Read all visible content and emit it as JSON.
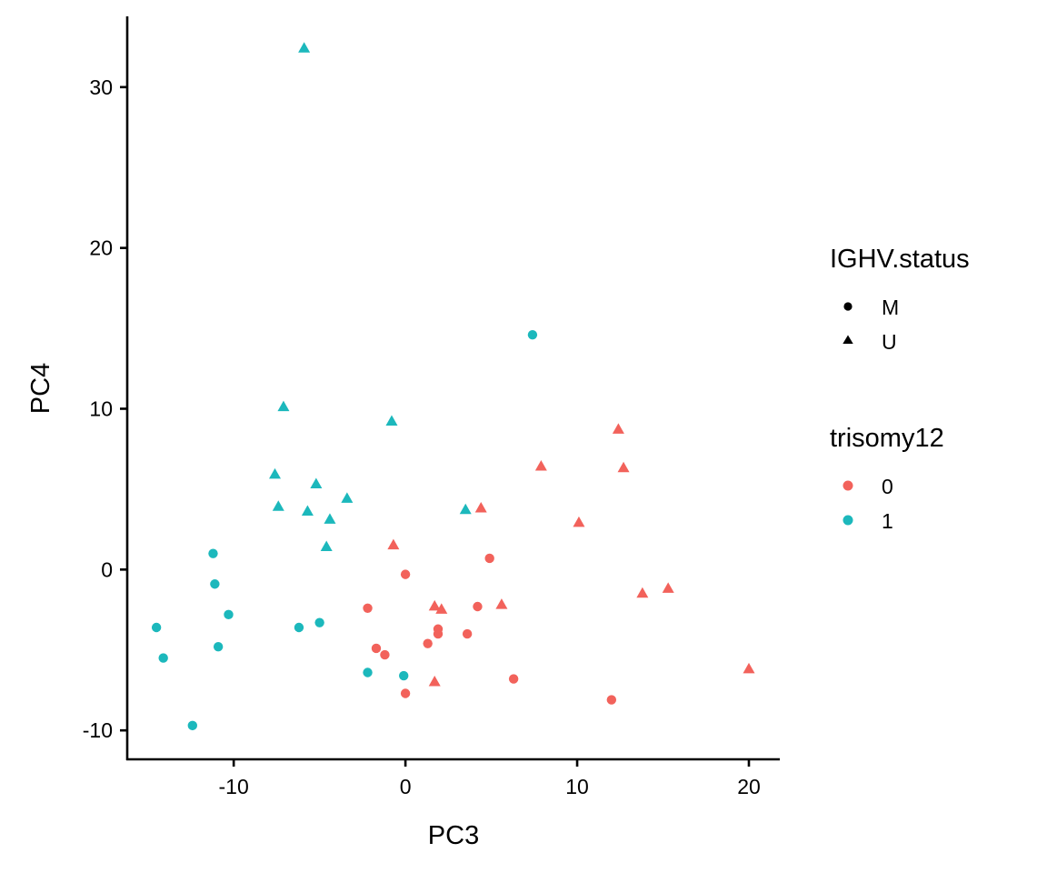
{
  "chart_data": {
    "type": "scatter",
    "title": "",
    "xlabel": "PC3",
    "ylabel": "PC4",
    "xlim": [
      -16.2,
      21.8
    ],
    "ylim": [
      -11.8,
      34.4
    ],
    "xticks": [
      -10,
      0,
      10,
      20
    ],
    "yticks": [
      -10,
      0,
      10,
      20,
      30
    ],
    "xtick_labels": [
      "-10",
      "0",
      "10",
      "20"
    ],
    "ytick_labels": [
      "-10",
      "0",
      "10",
      "20",
      "30"
    ],
    "grid": false,
    "legend_position": "right",
    "legends": [
      {
        "title": "IGHV.status",
        "kind": "shape",
        "entries": [
          {
            "label": "M",
            "shape": "circle"
          },
          {
            "label": "U",
            "shape": "triangle"
          }
        ]
      },
      {
        "title": "trisomy12",
        "kind": "color",
        "entries": [
          {
            "label": "0",
            "color": "#F8766D"
          },
          {
            "label": "1",
            "color": "#00BFC4"
          }
        ]
      }
    ],
    "series": [
      {
        "name": "trisomy12=1, IGHV=U",
        "trisomy12": "1",
        "IGHV.status": "U",
        "color": "#1CB8BC",
        "shape": "triangle",
        "points": [
          [
            -5.9,
            32.4
          ],
          [
            -7.1,
            10.1
          ],
          [
            -0.8,
            9.2
          ],
          [
            -7.6,
            5.9
          ],
          [
            -5.2,
            5.3
          ],
          [
            -7.4,
            3.9
          ],
          [
            -5.7,
            3.6
          ],
          [
            -3.4,
            4.4
          ],
          [
            -4.4,
            3.1
          ],
          [
            -4.6,
            1.4
          ],
          [
            3.5,
            3.7
          ]
        ]
      },
      {
        "name": "trisomy12=0, IGHV=U",
        "trisomy12": "0",
        "IGHV.status": "U",
        "color": "#F2625B",
        "shape": "triangle",
        "points": [
          [
            4.4,
            3.8
          ],
          [
            -0.7,
            1.5
          ],
          [
            12.4,
            8.7
          ],
          [
            7.9,
            6.4
          ],
          [
            12.7,
            6.3
          ],
          [
            10.1,
            2.9
          ],
          [
            1.7,
            -2.3
          ],
          [
            2.1,
            -2.5
          ],
          [
            5.6,
            -2.2
          ],
          [
            13.8,
            -1.5
          ],
          [
            15.3,
            -1.2
          ],
          [
            1.7,
            -7.0
          ],
          [
            20.0,
            -6.2
          ]
        ]
      },
      {
        "name": "trisomy12=0, IGHV=M",
        "trisomy12": "0",
        "IGHV.status": "M",
        "color": "#F2625B",
        "shape": "circle",
        "points": [
          [
            0.0,
            -0.3
          ],
          [
            4.9,
            0.7
          ],
          [
            -2.2,
            -2.4
          ],
          [
            4.2,
            -2.3
          ],
          [
            1.9,
            -3.7
          ],
          [
            1.9,
            -4.0
          ],
          [
            3.6,
            -4.0
          ],
          [
            1.3,
            -4.6
          ],
          [
            -1.7,
            -4.9
          ],
          [
            -1.2,
            -5.3
          ],
          [
            6.3,
            -6.8
          ],
          [
            0.0,
            -7.7
          ],
          [
            12.0,
            -8.1
          ]
        ]
      },
      {
        "name": "trisomy12=1, IGHV=M",
        "trisomy12": "1",
        "IGHV.status": "M",
        "color": "#1CB8BC",
        "shape": "circle",
        "points": [
          [
            -11.2,
            1.0
          ],
          [
            -11.1,
            -0.9
          ],
          [
            -10.3,
            -2.8
          ],
          [
            -14.5,
            -3.6
          ],
          [
            -6.2,
            -3.6
          ],
          [
            -5.0,
            -3.3
          ],
          [
            -14.1,
            -5.5
          ],
          [
            -10.9,
            -4.8
          ],
          [
            -2.2,
            -6.4
          ],
          [
            -0.1,
            -6.6
          ],
          [
            -12.4,
            -9.7
          ],
          [
            7.4,
            14.6
          ]
        ]
      }
    ]
  }
}
